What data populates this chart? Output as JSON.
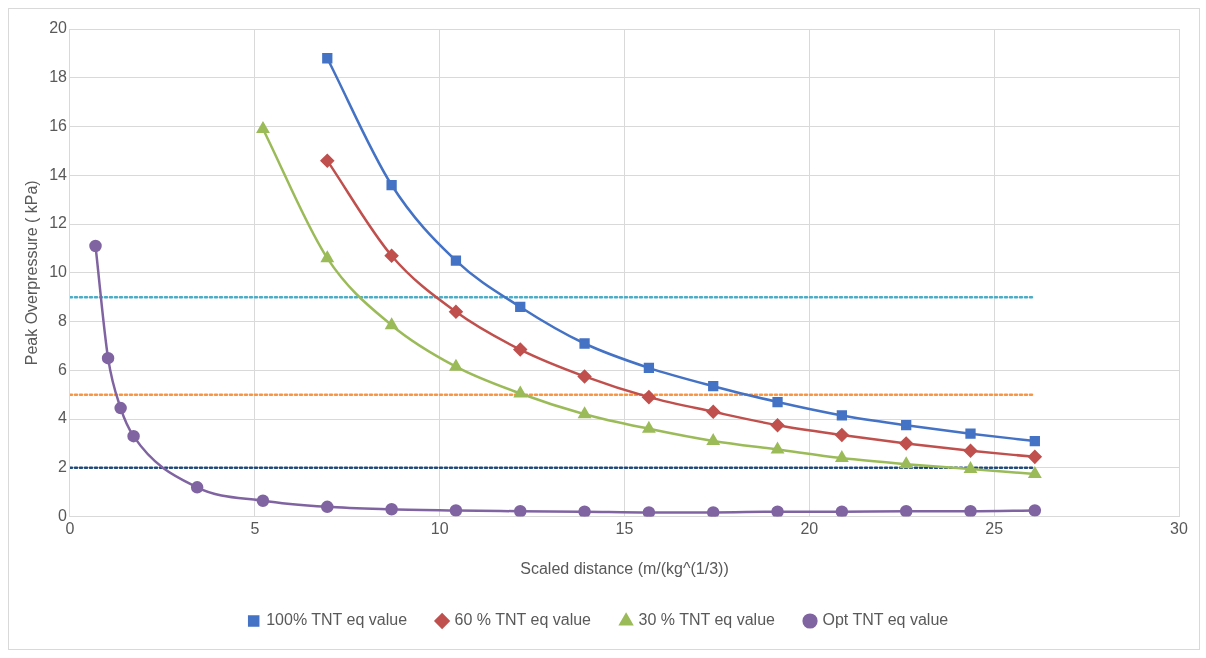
{
  "chart_data": {
    "type": "line",
    "xlabel": "Scaled distance (m/(kg^(1/3))",
    "ylabel": "Peak Overpressure ( kPa)",
    "xlim": [
      0,
      30
    ],
    "xticks": [
      0,
      5,
      10,
      15,
      20,
      25,
      30
    ],
    "ylim": [
      0,
      20
    ],
    "yticks": [
      0,
      2,
      4,
      6,
      8,
      10,
      12,
      14,
      16,
      18,
      20
    ],
    "grid": true,
    "legend": "bottom",
    "series": [
      {
        "name": "100% TNT eq value",
        "color": "#4472c4",
        "marker": "square",
        "x": [
          6.96,
          8.7,
          10.44,
          12.18,
          13.92,
          15.66,
          17.4,
          19.14,
          20.88,
          22.62,
          24.36,
          26.1
        ],
        "values": [
          18.8,
          13.6,
          10.5,
          8.6,
          7.1,
          6.1,
          5.35,
          4.7,
          4.15,
          3.75,
          3.4,
          3.1
        ]
      },
      {
        "name": "60 % TNT eq value",
        "color": "#c0504d",
        "marker": "diamond",
        "x": [
          6.96,
          8.7,
          10.44,
          12.18,
          13.92,
          15.66,
          17.4,
          19.14,
          20.88,
          22.62,
          24.36,
          26.1
        ],
        "values": [
          14.6,
          10.7,
          8.4,
          6.85,
          5.75,
          4.9,
          4.3,
          3.75,
          3.35,
          3.0,
          2.7,
          2.45
        ]
      },
      {
        "name": "30 % TNT eq value",
        "color": "#9bbb59",
        "marker": "triangle",
        "x": [
          5.22,
          6.96,
          8.7,
          10.44,
          12.18,
          13.92,
          15.66,
          17.4,
          19.14,
          20.88,
          22.62,
          24.36,
          26.1
        ],
        "values": [
          15.9,
          10.6,
          7.85,
          6.15,
          5.05,
          4.2,
          3.6,
          3.1,
          2.75,
          2.4,
          2.15,
          1.95,
          1.75
        ]
      },
      {
        "name": "Opt TNT eq value",
        "color": "#8064a2",
        "marker": "circle",
        "x": [
          0.69,
          1.03,
          1.37,
          1.72,
          3.44,
          5.22,
          6.96,
          8.7,
          10.44,
          12.18,
          13.92,
          15.66,
          17.4,
          19.14,
          20.88,
          22.62,
          24.36,
          26.1
        ],
        "values": [
          11.1,
          6.5,
          4.45,
          3.3,
          1.2,
          0.65,
          0.4,
          0.3,
          0.25,
          0.22,
          0.2,
          0.17,
          0.17,
          0.2,
          0.2,
          0.22,
          0.22,
          0.25
        ]
      },
      {
        "color": "#4bacc6",
        "marker": "none",
        "line_style": "dotted",
        "x": [
          0,
          26.1
        ],
        "values": [
          9,
          9
        ]
      },
      {
        "color": "#f79646",
        "marker": "none",
        "line_style": "dotted",
        "x": [
          0,
          26.1
        ],
        "values": [
          5,
          5
        ]
      },
      {
        "color": "#1f497d",
        "marker": "none",
        "line_style": "dotted",
        "x": [
          0,
          26.1
        ],
        "values": [
          2,
          2
        ]
      }
    ]
  }
}
